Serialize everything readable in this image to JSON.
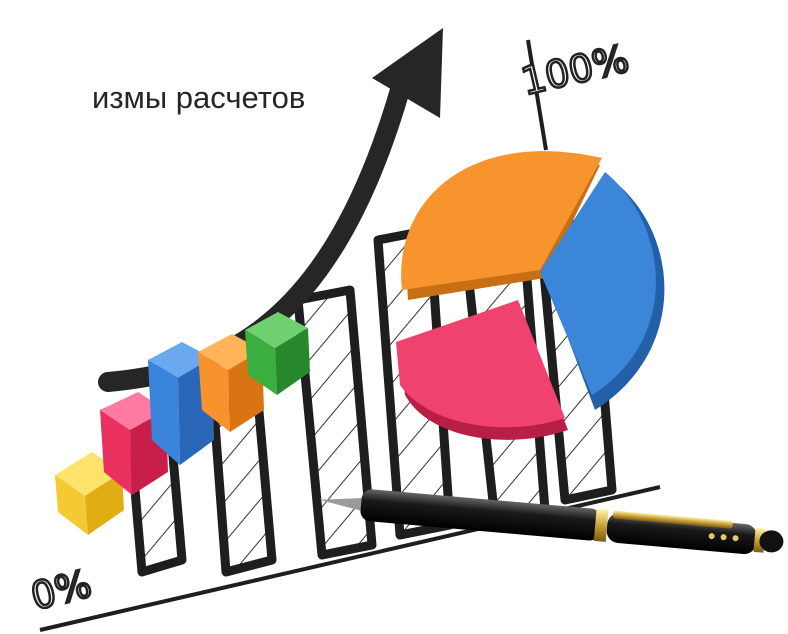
{
  "caption": "измы расчетов",
  "labels": {
    "top": "100%",
    "bottom": "0%"
  }
}
